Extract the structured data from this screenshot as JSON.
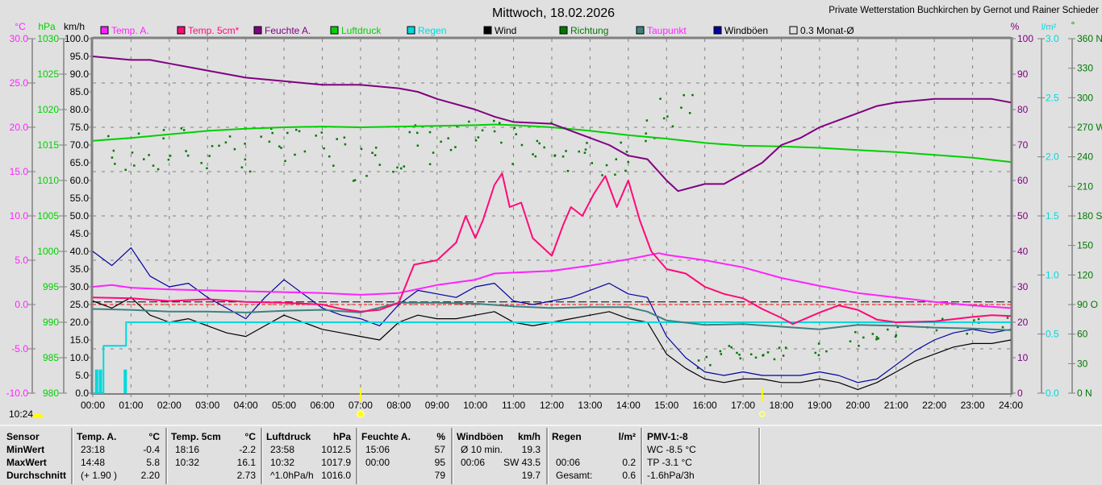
{
  "header": {
    "title": "Mittwoch, 18.02.2026",
    "credit": "Private Wetterstation Buchkirchen by Gernot und Rainer Schieder",
    "current_time": "10:24"
  },
  "legend": [
    {
      "label": "Temp. A.",
      "color": "#ff22ff"
    },
    {
      "label": "Temp. 5cm*",
      "color": "#ff0a78"
    },
    {
      "label": "Feuchte A.",
      "color": "#800080"
    },
    {
      "label": "Luftdruck",
      "color": "#00d000"
    },
    {
      "label": "Regen",
      "color": "#00d8dc"
    },
    {
      "label": "Wind",
      "color": "#000000"
    },
    {
      "label": "Richtung",
      "color": "#007800"
    },
    {
      "label": "Taupunkt",
      "color": "#408080"
    },
    {
      "label": "Windböen",
      "color": "#0000a0"
    },
    {
      "label": "0.3 Monat-Ø",
      "color": "#e0e0e0"
    }
  ],
  "chart_data": {
    "type": "line",
    "title": "Mittwoch, 18.02.2026",
    "x_unit": "hours",
    "x_ticks": [
      "00:00",
      "01:00",
      "02:00",
      "03:00",
      "04:00",
      "05:00",
      "06:00",
      "07:00",
      "08:00",
      "09:00",
      "10:00",
      "11:00",
      "12:00",
      "13:00",
      "14:00",
      "15:00",
      "16:00",
      "17:00",
      "18:00",
      "19:00",
      "20:00",
      "21:00",
      "22:00",
      "23:00",
      "24:00"
    ],
    "axes": {
      "temp": {
        "unit": "°C",
        "range": [
          -10,
          30
        ],
        "ticks": [
          "30.0",
          "25.0",
          "20.0",
          "15.0",
          "10.0",
          "5.0",
          "0.0",
          "-5.0",
          "-10.0"
        ],
        "color": "#ff22ff"
      },
      "pressure": {
        "unit": "hPa",
        "range": [
          980,
          1030
        ],
        "ticks": [
          "1030",
          "1025",
          "1020",
          "1015",
          "1010",
          "1005",
          "1000",
          "995",
          "990",
          "985",
          "980"
        ],
        "color": "#00d000"
      },
      "wind": {
        "unit": "km/h",
        "range": [
          0,
          100
        ],
        "ticks": [
          "100.0",
          "95.0",
          "90.0",
          "85.0",
          "80.0",
          "75.0",
          "70.0",
          "65.0",
          "60.0",
          "55.0",
          "50.0",
          "45.0",
          "40.0",
          "35.0",
          "30.0",
          "25.0",
          "20.0",
          "15.0",
          "10.0",
          "5.0",
          "0.0"
        ],
        "color": "#000000"
      },
      "humidity": {
        "unit": "%",
        "range": [
          0,
          100
        ],
        "ticks": [
          "100",
          "90",
          "80",
          "70",
          "60",
          "50",
          "40",
          "30",
          "20",
          "10",
          "0"
        ],
        "color": "#800080"
      },
      "rain": {
        "unit": "l/m²",
        "range": [
          0,
          3
        ],
        "ticks": [
          "3.0",
          "2.5",
          "2.0",
          "1.5",
          "1.0",
          "0.5",
          "0.0"
        ],
        "color": "#00d8dc"
      },
      "direction": {
        "unit": "°",
        "range": [
          0,
          360
        ],
        "ticks": [
          "360 N",
          "330",
          "300",
          "270 W",
          "240",
          "210",
          "180 S",
          "150",
          "120",
          "90  O",
          "60",
          "30",
          "0   N"
        ],
        "color": "#007800"
      }
    },
    "reference_lines": {
      "zero_temp": 0,
      "month_avg_temp": 0.3
    },
    "sun": {
      "rise": 7.0,
      "set": 17.5
    },
    "series": {
      "temp_a": [
        [
          0,
          2.0
        ],
        [
          0.5,
          2.2
        ],
        [
          1,
          1.9
        ],
        [
          2,
          1.7
        ],
        [
          3,
          1.6
        ],
        [
          4,
          1.5
        ],
        [
          5,
          1.4
        ],
        [
          6,
          1.3
        ],
        [
          7,
          1.1
        ],
        [
          8,
          1.3
        ],
        [
          9,
          2.2
        ],
        [
          10,
          2.8
        ],
        [
          10.5,
          3.5
        ],
        [
          11,
          3.6
        ],
        [
          12,
          3.8
        ],
        [
          13,
          4.4
        ],
        [
          14,
          5.1
        ],
        [
          14.8,
          5.8
        ],
        [
          15,
          5.6
        ],
        [
          16,
          5.0
        ],
        [
          17,
          4.2
        ],
        [
          18,
          3.0
        ],
        [
          19,
          2.1
        ],
        [
          20,
          1.3
        ],
        [
          21,
          0.8
        ],
        [
          22,
          0.3
        ],
        [
          23,
          -0.1
        ],
        [
          24,
          -0.4
        ]
      ],
      "temp_5cm": [
        [
          0,
          0.8
        ],
        [
          1,
          0.7
        ],
        [
          2,
          0.4
        ],
        [
          3,
          0.6
        ],
        [
          4,
          0.3
        ],
        [
          5,
          0.2
        ],
        [
          6,
          0
        ],
        [
          6.5,
          -0.5
        ],
        [
          7,
          -0.8
        ],
        [
          7.5,
          -0.6
        ],
        [
          8,
          0.2
        ],
        [
          8.4,
          4.5
        ],
        [
          9,
          5
        ],
        [
          9.5,
          7
        ],
        [
          9.75,
          10
        ],
        [
          10,
          7.5
        ],
        [
          10.2,
          9.5
        ],
        [
          10.5,
          13.5
        ],
        [
          10.7,
          14.8
        ],
        [
          10.9,
          11
        ],
        [
          11.2,
          11.5
        ],
        [
          11.5,
          7.5
        ],
        [
          12,
          5.5
        ],
        [
          12.3,
          9
        ],
        [
          12.5,
          11
        ],
        [
          12.8,
          10
        ],
        [
          13.1,
          12.5
        ],
        [
          13.4,
          14.5
        ],
        [
          13.7,
          11
        ],
        [
          14,
          14
        ],
        [
          14.3,
          9.5
        ],
        [
          14.6,
          6
        ],
        [
          15,
          4
        ],
        [
          15.5,
          3.5
        ],
        [
          16,
          2
        ],
        [
          16.5,
          1.2
        ],
        [
          17,
          0.7
        ],
        [
          17.5,
          -0.5
        ],
        [
          18,
          -1.5
        ],
        [
          18.3,
          -2.2
        ],
        [
          19,
          -0.9
        ],
        [
          19.5,
          -0.1
        ],
        [
          20,
          -0.6
        ],
        [
          20.5,
          -1.7
        ],
        [
          21,
          -2.0
        ],
        [
          22,
          -1.9
        ],
        [
          23,
          -1.4
        ],
        [
          23.5,
          -1.2
        ],
        [
          24,
          -1.3
        ]
      ],
      "humidity": [
        [
          0,
          95
        ],
        [
          1,
          94
        ],
        [
          1.5,
          94
        ],
        [
          2,
          93
        ],
        [
          3,
          91
        ],
        [
          4,
          89
        ],
        [
          5,
          88
        ],
        [
          6,
          87
        ],
        [
          7,
          87
        ],
        [
          8,
          86
        ],
        [
          8.5,
          85
        ],
        [
          9,
          83
        ],
        [
          10,
          80
        ],
        [
          10.5,
          78
        ],
        [
          11,
          76.5
        ],
        [
          12,
          76
        ],
        [
          13,
          72
        ],
        [
          13.5,
          70
        ],
        [
          14,
          67
        ],
        [
          14.5,
          66
        ],
        [
          15,
          60
        ],
        [
          15.3,
          57
        ],
        [
          16,
          59
        ],
        [
          16.5,
          59
        ],
        [
          17,
          62
        ],
        [
          17.5,
          65
        ],
        [
          18,
          70
        ],
        [
          18.5,
          72
        ],
        [
          19,
          75
        ],
        [
          19.5,
          77
        ],
        [
          20,
          79
        ],
        [
          20.5,
          81
        ],
        [
          21,
          82
        ],
        [
          22,
          83
        ],
        [
          23,
          83
        ],
        [
          23.5,
          83
        ],
        [
          24,
          82
        ]
      ],
      "pressure": [
        [
          0,
          1015.6
        ],
        [
          1,
          1016.0
        ],
        [
          2,
          1016.5
        ],
        [
          3,
          1017.0
        ],
        [
          4,
          1017.3
        ],
        [
          5,
          1017.5
        ],
        [
          6,
          1017.6
        ],
        [
          7,
          1017.5
        ],
        [
          8,
          1017.6
        ],
        [
          9,
          1017.7
        ],
        [
          10,
          1017.8
        ],
        [
          10.5,
          1017.9
        ],
        [
          11,
          1017.8
        ],
        [
          12,
          1017.5
        ],
        [
          13,
          1017.0
        ],
        [
          14,
          1016.4
        ],
        [
          15,
          1015.9
        ],
        [
          16,
          1015.3
        ],
        [
          17,
          1014.9
        ],
        [
          18,
          1014.8
        ],
        [
          19,
          1014.6
        ],
        [
          20,
          1014.3
        ],
        [
          21,
          1014.0
        ],
        [
          22,
          1013.6
        ],
        [
          23,
          1013.2
        ],
        [
          24,
          1012.6
        ]
      ],
      "dew_point": [
        [
          0,
          -0.5
        ],
        [
          1,
          -0.6
        ],
        [
          2,
          -0.8
        ],
        [
          3,
          -0.8
        ],
        [
          4,
          -0.9
        ],
        [
          5,
          -0.7
        ],
        [
          6,
          -0.6
        ],
        [
          7,
          -0.9
        ],
        [
          8,
          0.2
        ],
        [
          9,
          0.2
        ],
        [
          10,
          0.1
        ],
        [
          11,
          -0.2
        ],
        [
          12,
          -0.4
        ],
        [
          13,
          -0.3
        ],
        [
          14,
          -0.3
        ],
        [
          14.5,
          -0.8
        ],
        [
          15,
          -1.8
        ],
        [
          16,
          -2.3
        ],
        [
          17,
          -2.2
        ],
        [
          18,
          -2.5
        ],
        [
          19,
          -2.8
        ],
        [
          20,
          -2.3
        ],
        [
          21,
          -2.4
        ],
        [
          22,
          -2.6
        ],
        [
          23,
          -2.7
        ],
        [
          24,
          -2.9
        ]
      ],
      "rain_total": [
        [
          0,
          0
        ],
        [
          0.28,
          0
        ],
        [
          0.28,
          0.4
        ],
        [
          0.87,
          0.4
        ],
        [
          0.87,
          0.6
        ],
        [
          24,
          0.6
        ]
      ],
      "rain_bars": [
        [
          0.1,
          0.2
        ],
        [
          0.2,
          0.2
        ],
        [
          0.85,
          0.2
        ]
      ],
      "direction": [
        [
          0,
          235
        ],
        [
          0.5,
          250
        ],
        [
          1,
          245
        ],
        [
          1.5,
          240
        ],
        [
          2,
          248
        ],
        [
          2.5,
          252
        ],
        [
          3,
          245
        ],
        [
          3.5,
          255
        ],
        [
          4,
          240
        ],
        [
          4.5,
          250
        ],
        [
          5,
          255
        ],
        [
          5.5,
          248
        ],
        [
          6,
          250
        ],
        [
          6.5,
          245
        ],
        [
          7,
          235
        ],
        [
          7.5,
          250
        ],
        [
          8,
          245
        ],
        [
          8.5,
          255
        ],
        [
          9,
          250
        ],
        [
          9.5,
          255
        ],
        [
          10,
          260
        ],
        [
          10.5,
          258
        ],
        [
          11,
          250
        ],
        [
          11.5,
          245
        ],
        [
          12,
          255
        ],
        [
          12.5,
          245
        ],
        [
          13,
          238
        ],
        [
          13.5,
          235
        ],
        [
          14,
          245
        ],
        [
          14.5,
          275
        ],
        [
          15,
          290
        ],
        [
          15.5,
          285
        ],
        [
          16,
          30
        ],
        [
          16.5,
          45
        ],
        [
          17,
          38
        ],
        [
          17.5,
          38
        ],
        [
          18,
          40
        ],
        [
          19,
          45
        ],
        [
          20,
          55
        ],
        [
          20.5,
          60
        ],
        [
          21,
          65
        ],
        [
          22,
          70
        ],
        [
          23,
          68
        ],
        [
          24,
          70
        ]
      ],
      "wind_step_hours": 0.5,
      "wind": [
        26,
        24,
        27,
        22,
        20,
        21,
        19,
        17,
        16,
        19,
        22,
        20,
        18,
        17,
        16,
        15,
        20,
        22,
        21,
        21,
        22,
        23,
        20,
        19,
        20,
        21,
        22,
        23,
        21,
        20,
        11,
        7,
        4,
        3,
        4,
        4,
        3,
        3,
        4,
        3,
        1,
        3,
        6,
        9,
        11,
        13,
        14,
        14,
        15
      ],
      "gusts": [
        40,
        36,
        41,
        33,
        30,
        31,
        27,
        24,
        21,
        27,
        32,
        28,
        24,
        22,
        21,
        19,
        25,
        29,
        28,
        27,
        30,
        31,
        26,
        25,
        26,
        27,
        29,
        31,
        28,
        27,
        16,
        10,
        6,
        5,
        6,
        5,
        5,
        5,
        6,
        5,
        3,
        4,
        8,
        12,
        15,
        17,
        18,
        17,
        18
      ]
    }
  },
  "table": {
    "row_labels": [
      "Sensor",
      "MinWert",
      "MaxWert",
      "Durchschnitt"
    ],
    "columns": [
      {
        "header": "Temp. A.",
        "unit": "°C",
        "rows": [
          [
            "23:18",
            "-0.4"
          ],
          [
            "14:48",
            "5.8"
          ],
          [
            "(+ 1.90 )",
            "2.20"
          ]
        ]
      },
      {
        "header": "Temp. 5cm",
        "unit": "°C",
        "rows": [
          [
            "18:16",
            "-2.2"
          ],
          [
            "10:32",
            "16.1"
          ],
          [
            "",
            "2.73"
          ]
        ]
      },
      {
        "header": "Luftdruck",
        "unit": "hPa",
        "rows": [
          [
            "23:58",
            "1012.5"
          ],
          [
            "10:32",
            "1017.9"
          ],
          [
            "^1.0hPa/h",
            "1016.0"
          ]
        ]
      },
      {
        "header": "Feuchte A.",
        "unit": "%",
        "rows": [
          [
            "15:06",
            "57"
          ],
          [
            "00:00",
            "95"
          ],
          [
            "",
            "79"
          ]
        ]
      },
      {
        "header": "Windböen",
        "unit": "km/h",
        "rows": [
          [
            "Ø 10 min.",
            "19.3"
          ],
          [
            "00:06",
            "SW 43.5"
          ],
          [
            "",
            "19.7"
          ]
        ]
      },
      {
        "header": "Regen",
        "unit": "l/m²",
        "rows": [
          [
            "",
            ""
          ],
          [
            "00:06",
            "0.2"
          ],
          [
            "Gesamt:",
            "0.6"
          ]
        ]
      }
    ],
    "pmv": {
      "header": "PMV-1:-8",
      "rows": [
        "WC -8.5 °C",
        "TP -3.1 °C",
        "-1.6hPa/3h"
      ]
    }
  }
}
